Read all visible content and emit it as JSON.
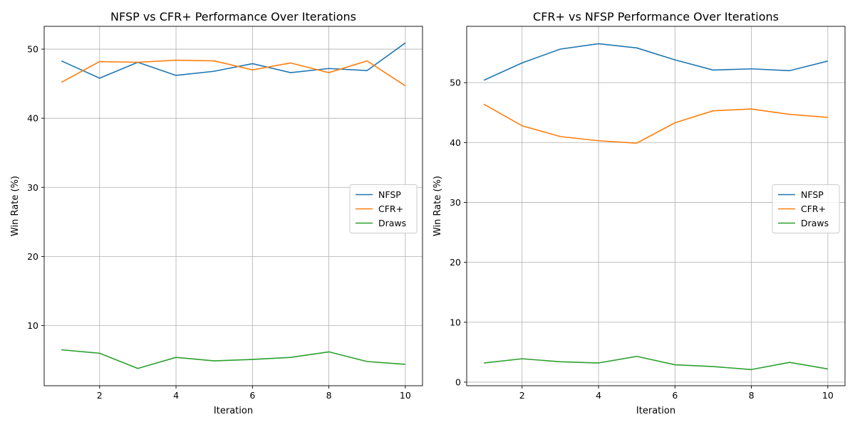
{
  "chart_data": [
    {
      "type": "line",
      "title": "NFSP vs CFR+ Performance Over Iterations",
      "xlabel": "Iteration",
      "ylabel": "Win Rate (%)",
      "xlim": [
        0.55,
        10.45
      ],
      "ylim": [
        1.3,
        53.3
      ],
      "xticks": [
        2,
        4,
        6,
        8,
        10
      ],
      "yticks": [
        10,
        20,
        30,
        40,
        50
      ],
      "grid": true,
      "legend_position": "center-right",
      "x": [
        1,
        2,
        3,
        4,
        5,
        6,
        7,
        8,
        9,
        10
      ],
      "series": [
        {
          "name": "NFSP",
          "color": "#1f77b4",
          "values": [
            48.3,
            45.8,
            48.1,
            46.2,
            46.8,
            47.9,
            46.6,
            47.2,
            46.9,
            50.9
          ]
        },
        {
          "name": "CFR+",
          "color": "#ff7f0e",
          "values": [
            45.2,
            48.2,
            48.1,
            48.4,
            48.3,
            47.0,
            48.0,
            46.6,
            48.3,
            44.7
          ]
        },
        {
          "name": "Draws",
          "color": "#2ca02c",
          "values": [
            6.5,
            6.0,
            3.8,
            5.4,
            4.9,
            5.1,
            5.4,
            6.2,
            4.8,
            4.4
          ]
        }
      ]
    },
    {
      "type": "line",
      "title": "CFR+ vs NFSP Performance Over Iterations",
      "xlabel": "Iteration",
      "ylabel": "Win Rate (%)",
      "xlim": [
        0.55,
        10.45
      ],
      "ylim": [
        -0.6,
        59.4
      ],
      "xticks": [
        2,
        4,
        6,
        8,
        10
      ],
      "yticks": [
        0,
        10,
        20,
        30,
        40,
        50
      ],
      "grid": true,
      "legend_position": "center-right",
      "x": [
        1,
        2,
        3,
        4,
        5,
        6,
        7,
        8,
        9,
        10
      ],
      "series": [
        {
          "name": "NFSP",
          "color": "#1f77b4",
          "values": [
            50.4,
            53.3,
            55.6,
            56.5,
            55.8,
            53.8,
            52.1,
            52.3,
            52.0,
            53.6
          ]
        },
        {
          "name": "CFR+",
          "color": "#ff7f0e",
          "values": [
            46.4,
            42.8,
            41.0,
            40.3,
            39.9,
            43.3,
            45.3,
            45.6,
            44.7,
            44.2
          ]
        },
        {
          "name": "Draws",
          "color": "#2ca02c",
          "values": [
            3.2,
            3.9,
            3.4,
            3.2,
            4.3,
            2.9,
            2.6,
            2.1,
            3.3,
            2.2
          ]
        }
      ]
    }
  ]
}
